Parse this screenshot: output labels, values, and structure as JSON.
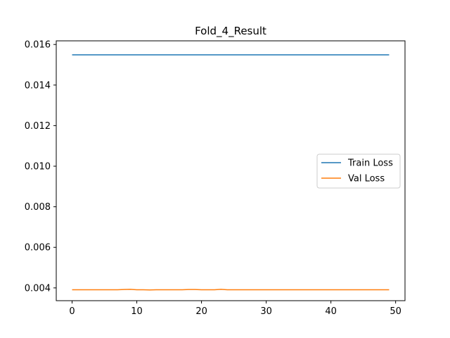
{
  "chart_data": {
    "type": "line",
    "title": "Fold_4_Result",
    "xlabel": "",
    "ylabel": "",
    "xlim": [
      -2.45,
      51.45
    ],
    "ylim": [
      0.00337,
      0.01618
    ],
    "x_ticks": [
      0,
      10,
      20,
      30,
      40,
      50
    ],
    "y_ticks": [
      0.004,
      0.006,
      0.008,
      0.01,
      0.012,
      0.014,
      0.016
    ],
    "y_tick_labels": [
      "0.004",
      "0.006",
      "0.008",
      "0.010",
      "0.012",
      "0.014",
      "0.016"
    ],
    "x_tick_labels": [
      "0",
      "10",
      "20",
      "30",
      "40",
      "50"
    ],
    "grid": false,
    "legend_position": "center-right",
    "x": [
      0,
      1,
      2,
      3,
      4,
      5,
      6,
      7,
      8,
      9,
      10,
      11,
      12,
      13,
      14,
      15,
      16,
      17,
      18,
      19,
      20,
      21,
      22,
      23,
      24,
      25,
      26,
      27,
      28,
      29,
      30,
      31,
      32,
      33,
      34,
      35,
      36,
      37,
      38,
      39,
      40,
      41,
      42,
      43,
      44,
      45,
      46,
      47,
      48,
      49
    ],
    "series": [
      {
        "name": "Train Loss",
        "color": "#1f77b4",
        "values": [
          0.01549,
          0.01549,
          0.01549,
          0.01549,
          0.01549,
          0.01549,
          0.01549,
          0.01549,
          0.01549,
          0.01549,
          0.01549,
          0.01549,
          0.01549,
          0.01549,
          0.01549,
          0.01549,
          0.01549,
          0.01549,
          0.01549,
          0.01549,
          0.01549,
          0.01549,
          0.01549,
          0.01549,
          0.01549,
          0.01549,
          0.01549,
          0.01549,
          0.01549,
          0.01549,
          0.01549,
          0.01549,
          0.01549,
          0.01549,
          0.01549,
          0.01549,
          0.01549,
          0.01549,
          0.01549,
          0.01549,
          0.01549,
          0.01549,
          0.01549,
          0.01549,
          0.01549,
          0.01549,
          0.01549,
          0.01549,
          0.01549,
          0.01549
        ]
      },
      {
        "name": "Val Loss",
        "color": "#ff7f0e",
        "values": [
          0.00391,
          0.00391,
          0.00391,
          0.00391,
          0.00391,
          0.00391,
          0.00391,
          0.00391,
          0.00392,
          0.00393,
          0.00391,
          0.00391,
          0.0039,
          0.00391,
          0.00391,
          0.00391,
          0.00391,
          0.00391,
          0.00392,
          0.00392,
          0.00391,
          0.00391,
          0.00391,
          0.00393,
          0.00391,
          0.00391,
          0.00391,
          0.00391,
          0.00391,
          0.00391,
          0.00391,
          0.00391,
          0.00391,
          0.00391,
          0.00391,
          0.00391,
          0.00391,
          0.00391,
          0.00391,
          0.00391,
          0.00391,
          0.00391,
          0.00391,
          0.00391,
          0.00391,
          0.00391,
          0.00391,
          0.00391,
          0.00391,
          0.00391
        ]
      }
    ]
  }
}
